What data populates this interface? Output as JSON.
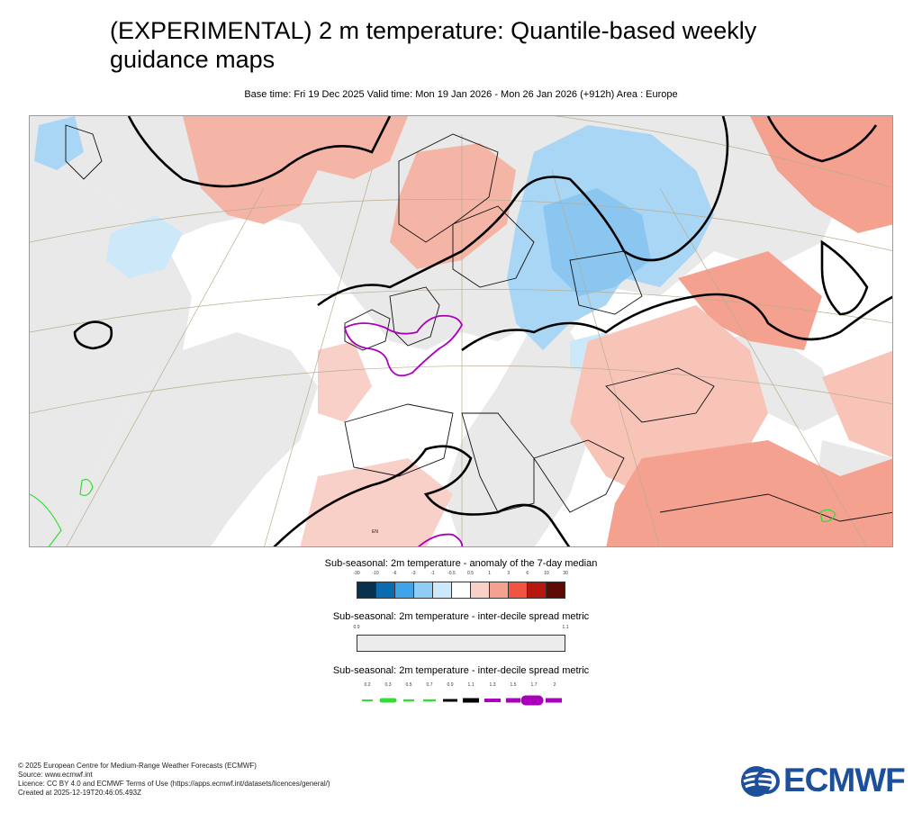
{
  "header": {
    "title_line1": "(EXPERIMENTAL) 2 m temperature: Quantile-based weekly",
    "title_line2": "guidance maps",
    "subtitle": "Base time: Fri 19 Dec 2025 Valid time: Mon 19 Jan 2026 - Mon 26 Jan 2026 (+912h) Area : Europe"
  },
  "map": {
    "area": "Europe",
    "town_label": "EN"
  },
  "legend_anomaly": {
    "title": "Sub-seasonal: 2m temperature - anomaly of the 7-day median",
    "ticks": [
      "-30",
      "-10",
      "-6",
      "-3",
      "-1",
      "-0.5",
      "0.5",
      "1",
      "3",
      "6",
      "10",
      "30"
    ],
    "colors": [
      "#08304f",
      "#0a6bb0",
      "#3fa3e8",
      "#8fcdf5",
      "#cde8f8",
      "#ffffff",
      "#f8d0c8",
      "#f4a190",
      "#ef5540",
      "#b8170f",
      "#5e0a05"
    ]
  },
  "legend_spread_fill": {
    "title": "Sub-seasonal: 2m temperature - inter-decile spread metric",
    "ticks": [
      "0.9",
      "1.1"
    ],
    "color": "#ececec"
  },
  "legend_spread_lines": {
    "title": "Sub-seasonal: 2m temperature - inter-decile spread metric",
    "ticks": [
      "0.2",
      "0.3",
      "0.5",
      "0.7",
      "0.9",
      "1.1",
      "1.3",
      "1.5",
      "1.7",
      "2"
    ],
    "colors": {
      "low": "#33dd33",
      "mid": "#000000",
      "high": "#aa00bb"
    }
  },
  "footer": {
    "line1": "© 2025 European Centre for Medium-Range Weather Forecasts (ECMWF)",
    "line2": "Source: www.ecmwf.int",
    "line3": "Licence: CC BY 4.0 and ECMWF Terms of Use (https://apps.ecmwf.int/datasets/licences/general/)",
    "line4": "Created at 2025-12-19T20:46:05.493Z"
  },
  "logo": {
    "text": "ECMWF",
    "icon": "ecmwf-logo-icon",
    "color": "#1c4f9c"
  }
}
